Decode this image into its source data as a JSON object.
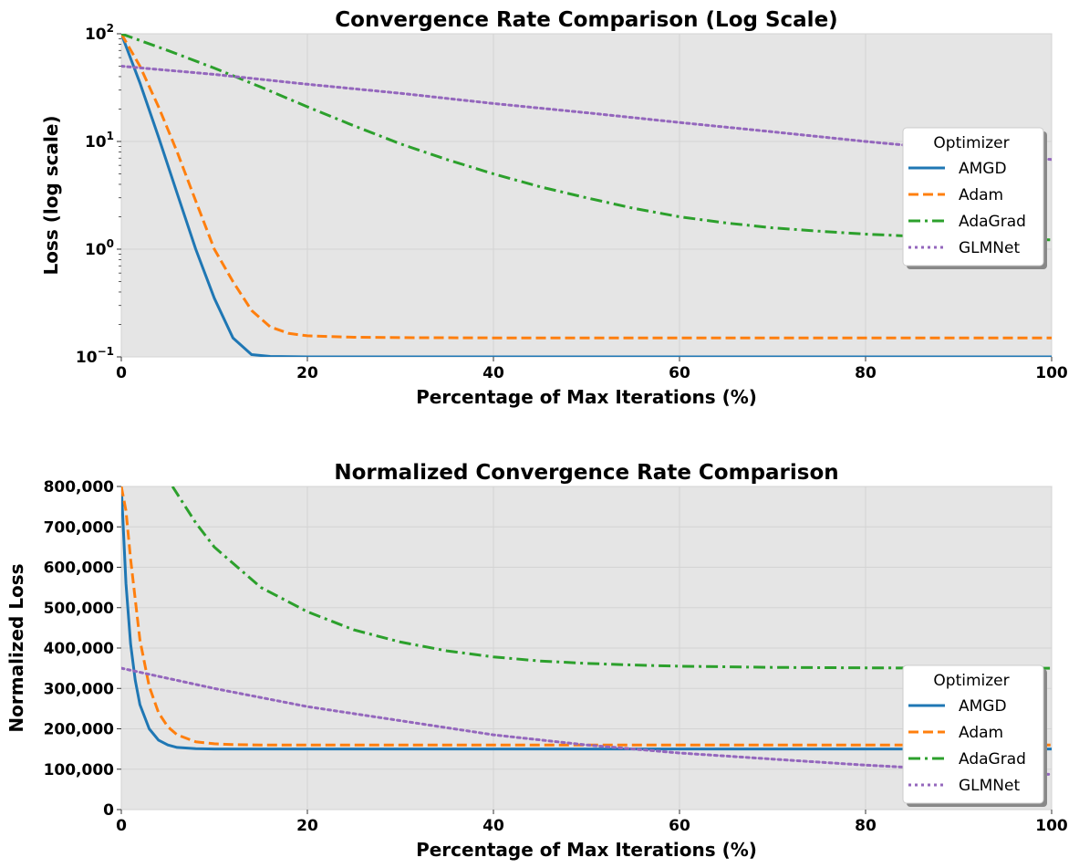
{
  "chart_data": [
    {
      "type": "line",
      "title": "Convergence Rate Comparison (Log Scale)",
      "xlabel": "Percentage of Max Iterations (%)",
      "ylabel": "Loss (log scale)",
      "xlim": [
        0,
        100
      ],
      "ylim": [
        0.1,
        100
      ],
      "yscale": "log",
      "grid": true,
      "x_ticks": [
        0,
        20,
        40,
        60,
        80,
        100
      ],
      "y_ticks": [
        {
          "value": 0.1,
          "base": "10",
          "exp": "−1"
        },
        {
          "value": 1,
          "base": "10",
          "exp": "0"
        },
        {
          "value": 10,
          "base": "10",
          "exp": "1"
        },
        {
          "value": 100,
          "base": "10",
          "exp": "2"
        }
      ],
      "legend": {
        "title": "Optimizer",
        "position": "right"
      },
      "series": [
        {
          "name": "AMGD",
          "color": "#1f77b4",
          "style": "solid",
          "x": [
            0,
            2,
            4,
            6,
            8,
            10,
            12,
            14,
            16,
            20,
            30,
            40,
            60,
            80,
            100
          ],
          "values": [
            100,
            35,
            11,
            3.3,
            1.0,
            0.35,
            0.15,
            0.105,
            0.101,
            0.1,
            0.1,
            0.1,
            0.1,
            0.1,
            0.1
          ]
        },
        {
          "name": "Adam",
          "color": "#ff7f0e",
          "style": "dashed",
          "x": [
            0,
            2,
            4,
            6,
            8,
            10,
            12,
            14,
            16,
            18,
            20,
            25,
            30,
            40,
            60,
            80,
            100
          ],
          "values": [
            100,
            50,
            21,
            8,
            2.8,
            1.0,
            0.5,
            0.27,
            0.19,
            0.165,
            0.157,
            0.152,
            0.151,
            0.15,
            0.15,
            0.15,
            0.15
          ]
        },
        {
          "name": "AdaGrad",
          "color": "#2ca02c",
          "style": "dashdot",
          "x": [
            0,
            5,
            10,
            15,
            20,
            25,
            30,
            35,
            40,
            45,
            50,
            55,
            60,
            65,
            70,
            75,
            80,
            85,
            90,
            95,
            100
          ],
          "values": [
            100,
            70,
            48,
            32,
            21,
            14,
            9.5,
            6.8,
            5.0,
            3.8,
            3.0,
            2.4,
            2.0,
            1.75,
            1.58,
            1.47,
            1.38,
            1.32,
            1.28,
            1.25,
            1.22
          ]
        },
        {
          "name": "GLMNet",
          "color": "#9467bd",
          "style": "dotted",
          "x": [
            0,
            10,
            20,
            30,
            40,
            50,
            60,
            70,
            80,
            90,
            100
          ],
          "values": [
            50,
            42,
            34,
            28,
            22.5,
            18.5,
            15,
            12.3,
            10,
            8.3,
            6.8
          ]
        }
      ]
    },
    {
      "type": "line",
      "title": "Normalized Convergence Rate Comparison",
      "xlabel": "Percentage of Max Iterations (%)",
      "ylabel": "Normalized Loss",
      "xlim": [
        0,
        100
      ],
      "ylim": [
        0,
        800000
      ],
      "yscale": "linear",
      "grid": true,
      "x_ticks": [
        0,
        20,
        40,
        60,
        80,
        100
      ],
      "y_ticks": [
        {
          "value": 0,
          "label": "0"
        },
        {
          "value": 100000,
          "label": "100,000"
        },
        {
          "value": 200000,
          "label": "200,000"
        },
        {
          "value": 300000,
          "label": "300,000"
        },
        {
          "value": 400000,
          "label": "400,000"
        },
        {
          "value": 500000,
          "label": "500,000"
        },
        {
          "value": 600000,
          "label": "600,000"
        },
        {
          "value": 700000,
          "label": "700,000"
        },
        {
          "value": 800000,
          "label": "800,000"
        }
      ],
      "legend": {
        "title": "Optimizer",
        "position": "lower right"
      },
      "series": [
        {
          "name": "AMGD",
          "color": "#1f77b4",
          "style": "solid",
          "x": [
            0,
            0.5,
            1,
            1.5,
            2,
            3,
            4,
            5,
            6,
            8,
            10,
            15,
            20,
            40,
            60,
            80,
            100
          ],
          "values": [
            800000,
            560000,
            410000,
            320000,
            260000,
            200000,
            172000,
            160000,
            154000,
            151000,
            150000,
            150000,
            150000,
            150000,
            150000,
            150000,
            150000
          ]
        },
        {
          "name": "Adam",
          "color": "#ff7f0e",
          "style": "dashed",
          "x": [
            0,
            0.5,
            1,
            2,
            3,
            4,
            5,
            6,
            8,
            10,
            12,
            15,
            20,
            40,
            60,
            80,
            100
          ],
          "values": [
            800000,
            740000,
            620000,
            420000,
            305000,
            240000,
            205000,
            185000,
            168000,
            163000,
            161000,
            160000,
            160000,
            160000,
            160000,
            160000,
            160000
          ]
        },
        {
          "name": "AdaGrad",
          "color": "#2ca02c",
          "style": "dashdot",
          "x": [
            5.5,
            8,
            10,
            15,
            20,
            25,
            30,
            35,
            40,
            45,
            50,
            55,
            60,
            70,
            80,
            90,
            100
          ],
          "values": [
            800000,
            710000,
            650000,
            550000,
            490000,
            445000,
            415000,
            393000,
            378000,
            368000,
            362000,
            358000,
            355000,
            352000,
            351000,
            350000,
            350000
          ]
        },
        {
          "name": "GLMNet",
          "color": "#9467bd",
          "style": "dotted",
          "x": [
            0,
            10,
            20,
            30,
            40,
            50,
            60,
            70,
            80,
            90,
            100
          ],
          "values": [
            350000,
            300000,
            255000,
            220000,
            185000,
            160000,
            140000,
            125000,
            110000,
            98000,
            87000
          ]
        }
      ]
    }
  ]
}
